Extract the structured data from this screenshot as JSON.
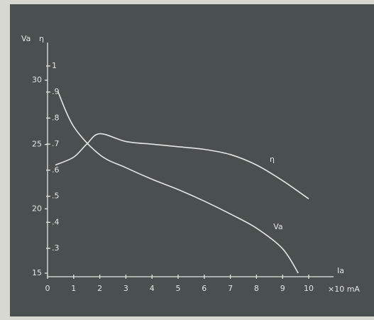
{
  "chart_data": {
    "type": "line",
    "x_label": "Ia",
    "x_unit": "×10 mA",
    "y_label": "Va",
    "y2_label": "η",
    "xlim": [
      0,
      10
    ],
    "xticks": [
      0,
      1,
      2,
      3,
      4,
      5,
      6,
      7,
      8,
      9,
      10
    ],
    "ylim": [
      15,
      30
    ],
    "yticks": [
      15,
      20,
      25,
      30
    ],
    "y2lim": [
      0.3,
      1
    ],
    "y2ticks": [
      1,
      {
        "value": 0.9,
        "label": ".9"
      },
      {
        "value": 0.8,
        "label": ".8"
      },
      {
        "value": 0.7,
        "label": ".7"
      },
      {
        "value": 0.6,
        "label": ".6"
      },
      {
        "value": 0.5,
        "label": ".5"
      },
      {
        "value": 0.4,
        "label": ".4"
      },
      {
        "value": 0.3,
        "label": ".3"
      }
    ],
    "series": [
      {
        "name": "Va",
        "color": "#e4e6e2",
        "x": [
          0.4,
          1,
          2,
          3,
          4,
          5,
          6,
          7,
          8,
          9,
          9.6
        ],
        "values": [
          29.1,
          26.4,
          24.2,
          23.2,
          22.3,
          21.5,
          20.6,
          19.6,
          18.5,
          16.9,
          15
        ]
      },
      {
        "name": "η",
        "color": "#e4e6e2",
        "axis": "y2",
        "x": [
          0.3,
          1,
          1.5,
          2,
          3,
          4,
          5,
          6,
          7,
          8,
          9,
          10
        ],
        "values": [
          0.62,
          0.65,
          0.7,
          0.74,
          0.71,
          0.7,
          0.69,
          0.68,
          0.66,
          0.62,
          0.56,
          0.49
        ]
      }
    ]
  }
}
